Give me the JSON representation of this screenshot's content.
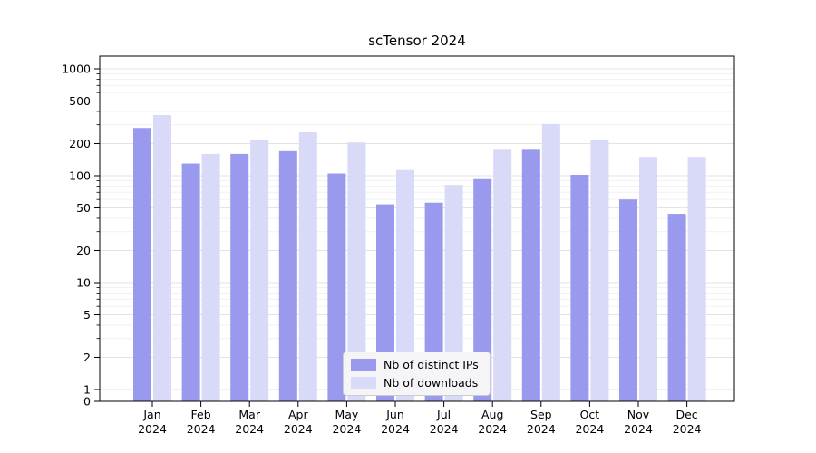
{
  "title": "scTensor 2024",
  "chart_data": {
    "type": "bar",
    "categories": [
      "Jan",
      "Feb",
      "Mar",
      "Apr",
      "May",
      "Jun",
      "Jul",
      "Aug",
      "Sep",
      "Oct",
      "Nov",
      "Dec"
    ],
    "year_label": "2024",
    "series": [
      {
        "name": "Nb of distinct IPs",
        "color": "#9999ed",
        "values": [
          280,
          130,
          160,
          170,
          105,
          54,
          56,
          93,
          175,
          102,
          60,
          44
        ]
      },
      {
        "name": "Nb of downloads",
        "color": "#d9d9f8",
        "values": [
          370,
          160,
          215,
          255,
          205,
          113,
          82,
          175,
          305,
          215,
          150,
          150
        ]
      }
    ],
    "yscale": "symlog",
    "yticks": [
      0,
      1,
      2,
      5,
      10,
      20,
      50,
      100,
      200,
      500,
      1000
    ],
    "ylim": [
      0,
      1300
    ],
    "grid": true,
    "grid_color_major": "#e3e3e3",
    "grid_color_minor": "#f1f1f1",
    "axis_color": "#000000",
    "legend_position": "lower center"
  }
}
